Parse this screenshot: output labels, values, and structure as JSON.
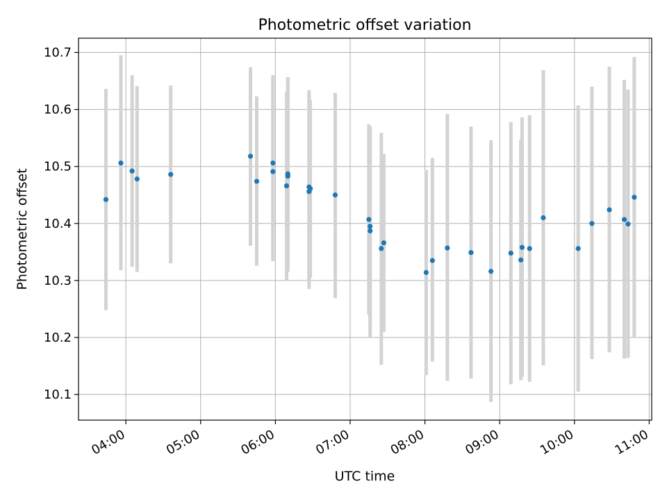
{
  "chart_data": {
    "type": "scatter",
    "title": "Photometric offset variation",
    "xlabel": "UTC time",
    "ylabel": "Photometric offset",
    "x_unit": "UTC time (HH:MM)",
    "xlim": [
      "03:22",
      "11:02"
    ],
    "ylim": [
      10.055,
      10.725
    ],
    "grid": true,
    "colors": {
      "points": "#1f77b4",
      "error_bars": "#d3d3d3",
      "grid": "#b0b0b0",
      "axes": "#000000"
    },
    "xticks": [
      {
        "value": "04:00",
        "label": "04:00"
      },
      {
        "value": "05:00",
        "label": "05:00"
      },
      {
        "value": "06:00",
        "label": "06:00"
      },
      {
        "value": "07:00",
        "label": "07:00"
      },
      {
        "value": "08:00",
        "label": "08:00"
      },
      {
        "value": "09:00",
        "label": "09:00"
      },
      {
        "value": "10:00",
        "label": "10:00"
      },
      {
        "value": "11:00",
        "label": "11:00"
      }
    ],
    "yticks": [
      {
        "value": 10.1,
        "label": "10.1"
      },
      {
        "value": 10.2,
        "label": "10.2"
      },
      {
        "value": 10.3,
        "label": "10.3"
      },
      {
        "value": 10.4,
        "label": "10.4"
      },
      {
        "value": 10.5,
        "label": "10.5"
      },
      {
        "value": 10.6,
        "label": "10.6"
      },
      {
        "value": 10.7,
        "label": "10.7"
      }
    ],
    "points": [
      {
        "x": "03:44",
        "y": 10.442,
        "err_low": 10.248,
        "err_high": 10.636
      },
      {
        "x": "03:56",
        "y": 10.506,
        "err_low": 10.318,
        "err_high": 10.695
      },
      {
        "x": "04:05",
        "y": 10.492,
        "err_low": 10.324,
        "err_high": 10.66
      },
      {
        "x": "04:09",
        "y": 10.478,
        "err_low": 10.315,
        "err_high": 10.641
      },
      {
        "x": "04:36",
        "y": 10.486,
        "err_low": 10.33,
        "err_high": 10.642
      },
      {
        "x": "05:40",
        "y": 10.518,
        "err_low": 10.361,
        "err_high": 10.674
      },
      {
        "x": "05:45",
        "y": 10.474,
        "err_low": 10.326,
        "err_high": 10.623
      },
      {
        "x": "05:58",
        "y": 10.491,
        "err_low": 10.334,
        "err_high": 10.65
      },
      {
        "x": "05:58",
        "y": 10.506,
        "err_low": 10.35,
        "err_high": 10.66
      },
      {
        "x": "06:09",
        "y": 10.466,
        "err_low": 10.301,
        "err_high": 10.631
      },
      {
        "x": "06:10",
        "y": 10.483,
        "err_low": 10.315,
        "err_high": 10.651
      },
      {
        "x": "06:10",
        "y": 10.487,
        "err_low": 10.32,
        "err_high": 10.657
      },
      {
        "x": "06:27",
        "y": 10.464,
        "err_low": 10.294,
        "err_high": 10.634
      },
      {
        "x": "06:27",
        "y": 10.456,
        "err_low": 10.285,
        "err_high": 10.627
      },
      {
        "x": "06:28",
        "y": 10.461,
        "err_low": 10.305,
        "err_high": 10.616
      },
      {
        "x": "06:48",
        "y": 10.45,
        "err_low": 10.269,
        "err_high": 10.629
      },
      {
        "x": "07:15",
        "y": 10.407,
        "err_low": 10.24,
        "err_high": 10.574
      },
      {
        "x": "07:16",
        "y": 10.387,
        "err_low": 10.201,
        "err_high": 10.566
      },
      {
        "x": "07:16",
        "y": 10.395,
        "err_low": 10.223,
        "err_high": 10.57
      },
      {
        "x": "07:25",
        "y": 10.356,
        "err_low": 10.152,
        "err_high": 10.559
      },
      {
        "x": "07:27",
        "y": 10.366,
        "err_low": 10.21,
        "err_high": 10.522
      },
      {
        "x": "08:01",
        "y": 10.314,
        "err_low": 10.134,
        "err_high": 10.494
      },
      {
        "x": "08:06",
        "y": 10.335,
        "err_low": 10.158,
        "err_high": 10.515
      },
      {
        "x": "08:18",
        "y": 10.357,
        "err_low": 10.124,
        "err_high": 10.592
      },
      {
        "x": "08:37",
        "y": 10.349,
        "err_low": 10.128,
        "err_high": 10.57
      },
      {
        "x": "08:53",
        "y": 10.316,
        "err_low": 10.087,
        "err_high": 10.546
      },
      {
        "x": "09:09",
        "y": 10.348,
        "err_low": 10.118,
        "err_high": 10.578
      },
      {
        "x": "09:17",
        "y": 10.336,
        "err_low": 10.125,
        "err_high": 10.547
      },
      {
        "x": "09:18",
        "y": 10.358,
        "err_low": 10.131,
        "err_high": 10.586
      },
      {
        "x": "09:24",
        "y": 10.356,
        "err_low": 10.122,
        "err_high": 10.59
      },
      {
        "x": "09:35",
        "y": 10.41,
        "err_low": 10.151,
        "err_high": 10.669
      },
      {
        "x": "10:03",
        "y": 10.356,
        "err_low": 10.105,
        "err_high": 10.607
      },
      {
        "x": "10:14",
        "y": 10.4,
        "err_low": 10.162,
        "err_high": 10.64
      },
      {
        "x": "10:28",
        "y": 10.424,
        "err_low": 10.174,
        "err_high": 10.675
      },
      {
        "x": "10:40",
        "y": 10.407,
        "err_low": 10.163,
        "err_high": 10.652
      },
      {
        "x": "10:43",
        "y": 10.399,
        "err_low": 10.164,
        "err_high": 10.635
      },
      {
        "x": "10:48",
        "y": 10.446,
        "err_low": 10.2,
        "err_high": 10.692
      }
    ]
  }
}
